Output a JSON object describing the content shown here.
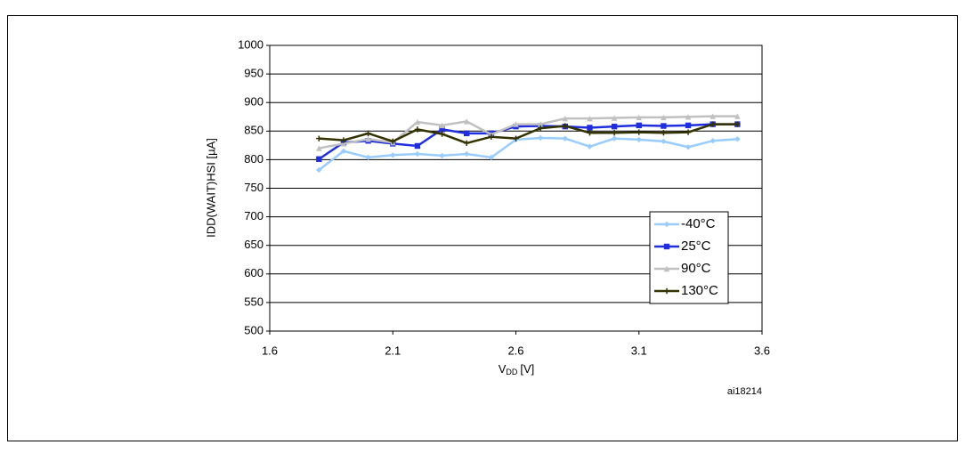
{
  "chart_data": {
    "type": "line",
    "ylabel": "IDD(WAIT)HSI [µA]",
    "xlabel": "V",
    "xlabel_sub": "DD",
    "xlabel_unit": "[V]",
    "annotation": "ai18214",
    "x": [
      1.8,
      1.9,
      2.0,
      2.1,
      2.2,
      2.3,
      2.4,
      2.5,
      2.6,
      2.7,
      2.8,
      2.9,
      3.0,
      3.1,
      3.2,
      3.3,
      3.4,
      3.5
    ],
    "series": [
      {
        "name": "-40°C",
        "color": "#99ccff",
        "marker": "diamond",
        "values": [
          782,
          815,
          804,
          808,
          810,
          807,
          810,
          804,
          835,
          838,
          837,
          823,
          837,
          835,
          832,
          822,
          833,
          836
        ]
      },
      {
        "name": "25°C",
        "color": "#1f2fe0",
        "marker": "square",
        "values": [
          801,
          830,
          833,
          828,
          824,
          853,
          846,
          846,
          858,
          859,
          858,
          856,
          858,
          860,
          859,
          860,
          862,
          862
        ]
      },
      {
        "name": "90°C",
        "color": "#c0c0c0",
        "marker": "triangle",
        "values": [
          820,
          828,
          836,
          830,
          866,
          860,
          867,
          844,
          862,
          862,
          872,
          872,
          873,
          874,
          874,
          875,
          876,
          876
        ]
      },
      {
        "name": "130°C",
        "color": "#333300",
        "marker": "cross",
        "values": [
          837,
          834,
          846,
          832,
          853,
          845,
          829,
          840,
          837,
          855,
          859,
          847,
          847,
          848,
          847,
          848,
          862,
          862
        ]
      }
    ],
    "xlim": [
      1.6,
      3.6
    ],
    "xticks": [
      1.6,
      2.1,
      2.6,
      3.1,
      3.6
    ],
    "ylim": [
      500,
      1000
    ],
    "yticks": [
      500,
      550,
      600,
      650,
      700,
      750,
      800,
      850,
      900,
      950,
      1000
    ],
    "grid": true,
    "legend": "right"
  }
}
